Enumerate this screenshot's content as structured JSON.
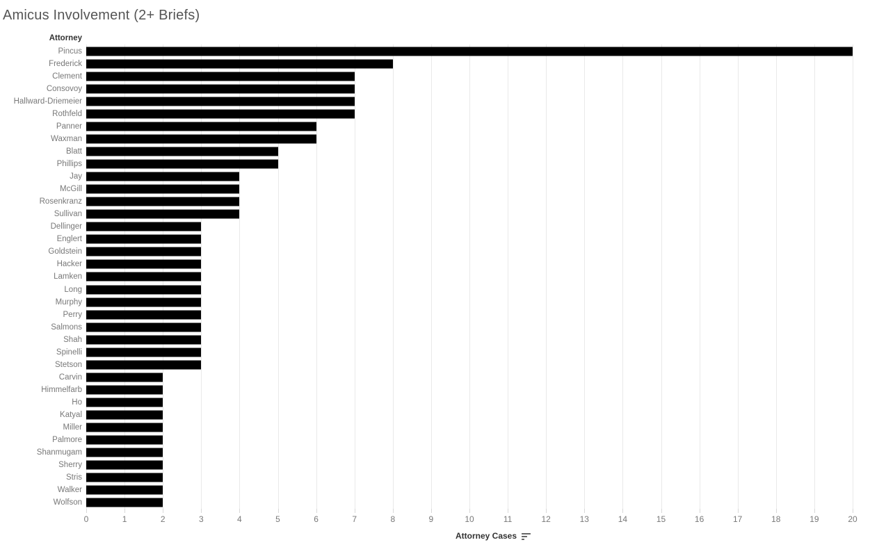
{
  "title": "Amicus Involvement (2+ Briefs)",
  "columns": {
    "row_header": "Attorney"
  },
  "x_axis": {
    "label": "Attorney Cases",
    "min": 0,
    "max": 20,
    "ticks": [
      0,
      1,
      2,
      3,
      4,
      5,
      6,
      7,
      8,
      9,
      10,
      11,
      12,
      13,
      14,
      15,
      16,
      17,
      18,
      19,
      20
    ]
  },
  "icons": {
    "sort": "sort-descending-icon"
  },
  "colors": {
    "bar": "#000000",
    "title_text": "#555555",
    "row_label_text": "#787878",
    "header_text": "#333333",
    "tick_label_text": "#787878",
    "gridline": "#e9e9e9",
    "tick_mark": "#d8d8d8",
    "background": "#ffffff"
  },
  "chart_data": {
    "type": "bar",
    "orientation": "horizontal",
    "title": "Amicus Involvement (2+ Briefs)",
    "xlabel": "Attorney Cases",
    "ylabel": "Attorney",
    "xlim": [
      0,
      20
    ],
    "grid": true,
    "legend": false,
    "sort": "descending",
    "bar_color": "#000000",
    "categories": [
      "Pincus",
      "Frederick",
      "Clement",
      "Consovoy",
      "Hallward-Driemeier",
      "Rothfeld",
      "Panner",
      "Waxman",
      "Blatt",
      "Phillips",
      "Jay",
      "McGill",
      "Rosenkranz",
      "Sullivan",
      "Dellinger",
      "Englert",
      "Goldstein",
      "Hacker",
      "Lamken",
      "Long",
      "Murphy",
      "Perry",
      "Salmons",
      "Shah",
      "Spinelli",
      "Stetson",
      "Carvin",
      "Himmelfarb",
      "Ho",
      "Katyal",
      "Miller",
      "Palmore",
      "Shanmugam",
      "Sherry",
      "Stris",
      "Walker",
      "Wolfson"
    ],
    "values": [
      20,
      8,
      7,
      7,
      7,
      7,
      6,
      6,
      5,
      5,
      4,
      4,
      4,
      4,
      3,
      3,
      3,
      3,
      3,
      3,
      3,
      3,
      3,
      3,
      3,
      3,
      2,
      2,
      2,
      2,
      2,
      2,
      2,
      2,
      2,
      2,
      2
    ]
  }
}
